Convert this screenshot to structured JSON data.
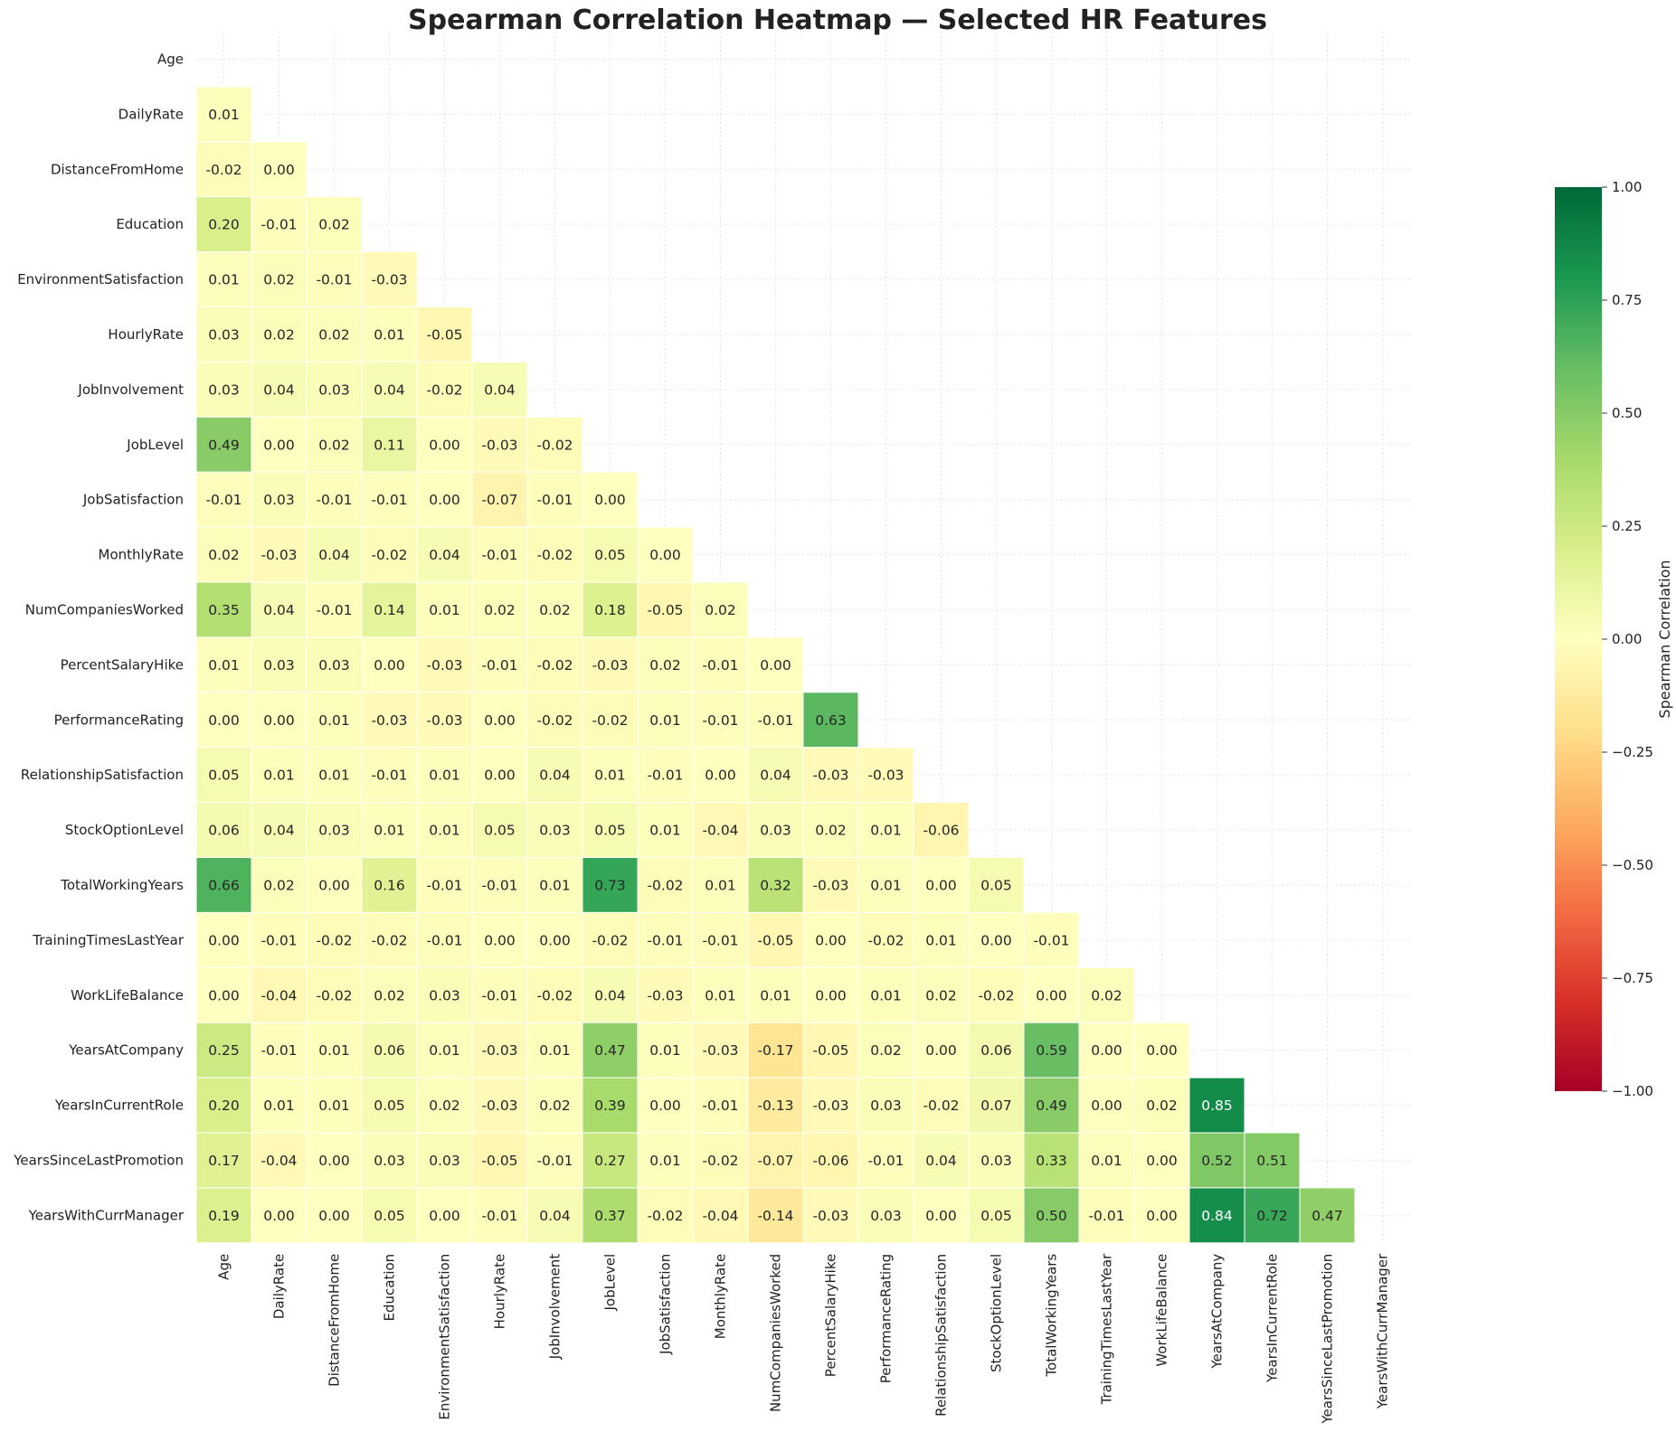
{
  "chart_data": {
    "type": "heatmap",
    "title": "Spearman Correlation Heatmap — Selected HR Features",
    "features": [
      "Age",
      "DailyRate",
      "DistanceFromHome",
      "Education",
      "EnvironmentSatisfaction",
      "HourlyRate",
      "JobInvolvement",
      "JobLevel",
      "JobSatisfaction",
      "MonthlyRate",
      "NumCompaniesWorked",
      "PercentSalaryHike",
      "PerformanceRating",
      "RelationshipSatisfaction",
      "StockOptionLevel",
      "TotalWorkingYears",
      "TrainingTimesLastYear",
      "WorkLifeBalance",
      "YearsAtCompany",
      "YearsInCurrentRole",
      "YearsSinceLastPromotion",
      "YearsWithCurrManager"
    ],
    "mask": "upper-triangle-including-diagonal",
    "lower_triangle_values": [
      [],
      [
        0.01
      ],
      [
        -0.02,
        -0.0
      ],
      [
        0.2,
        -0.01,
        0.02
      ],
      [
        0.01,
        0.02,
        -0.01,
        -0.03
      ],
      [
        0.03,
        0.02,
        0.02,
        0.01,
        -0.05
      ],
      [
        0.03,
        0.04,
        0.03,
        0.04,
        -0.02,
        0.04
      ],
      [
        0.49,
        0.0,
        0.02,
        0.11,
        -0.0,
        -0.03,
        -0.02
      ],
      [
        -0.01,
        0.03,
        -0.01,
        -0.01,
        -0.0,
        -0.07,
        -0.01,
        -0.0
      ],
      [
        0.02,
        -0.03,
        0.04,
        -0.02,
        0.04,
        -0.01,
        -0.02,
        0.05,
        -0.0
      ],
      [
        0.35,
        0.04,
        -0.01,
        0.14,
        0.01,
        0.02,
        0.02,
        0.18,
        -0.05,
        0.02
      ],
      [
        0.01,
        0.03,
        0.03,
        0.0,
        -0.03,
        -0.01,
        -0.02,
        -0.03,
        0.02,
        -0.01,
        0.0
      ],
      [
        0.0,
        0.0,
        0.01,
        -0.03,
        -0.03,
        -0.0,
        -0.02,
        -0.02,
        0.01,
        -0.01,
        -0.01,
        0.63
      ],
      [
        0.05,
        0.01,
        0.01,
        -0.01,
        0.01,
        0.0,
        0.04,
        0.01,
        -0.01,
        -0.0,
        0.04,
        -0.03,
        -0.03
      ],
      [
        0.06,
        0.04,
        0.03,
        0.01,
        0.01,
        0.05,
        0.03,
        0.05,
        0.01,
        -0.04,
        0.03,
        0.02,
        0.01,
        -0.06
      ],
      [
        0.66,
        0.02,
        -0.0,
        0.16,
        -0.01,
        -0.01,
        0.01,
        0.73,
        -0.02,
        0.01,
        0.32,
        -0.03,
        0.01,
        0.0,
        0.05
      ],
      [
        0.0,
        -0.01,
        -0.02,
        -0.02,
        -0.01,
        0.0,
        0.0,
        -0.02,
        -0.01,
        -0.01,
        -0.05,
        -0.0,
        -0.02,
        0.01,
        0.0,
        -0.01
      ],
      [
        -0.0,
        -0.04,
        -0.02,
        0.02,
        0.03,
        -0.01,
        -0.02,
        0.04,
        -0.03,
        0.01,
        0.01,
        0.0,
        0.01,
        0.02,
        -0.02,
        0.0,
        0.02
      ],
      [
        0.25,
        -0.01,
        0.01,
        0.06,
        0.01,
        -0.03,
        0.01,
        0.47,
        0.01,
        -0.03,
        -0.17,
        -0.05,
        0.02,
        -0.0,
        0.06,
        0.59,
        0.0,
        0.0
      ],
      [
        0.2,
        0.01,
        0.01,
        0.05,
        0.02,
        -0.03,
        0.02,
        0.39,
        0.0,
        -0.01,
        -0.13,
        -0.03,
        0.03,
        -0.02,
        0.07,
        0.49,
        0.0,
        0.02,
        0.85
      ],
      [
        0.17,
        -0.04,
        -0.0,
        0.03,
        0.03,
        -0.05,
        -0.01,
        0.27,
        0.01,
        -0.02,
        -0.07,
        -0.06,
        -0.01,
        0.04,
        0.03,
        0.33,
        0.01,
        0.0,
        0.52,
        0.51
      ],
      [
        0.19,
        -0.0,
        0.0,
        0.05,
        -0.0,
        -0.01,
        0.04,
        0.37,
        -0.02,
        -0.04,
        -0.14,
        -0.03,
        0.03,
        0.0,
        0.05,
        0.5,
        -0.01,
        -0.0,
        0.84,
        0.72,
        0.47
      ]
    ],
    "value_format": "two decimals",
    "colorbar": {
      "label": "Spearman Correlation",
      "range": [
        -1.0,
        1.0
      ],
      "ticks": [
        "−1.00",
        "−0.75",
        "−0.50",
        "−0.25",
        "0.00",
        "0.25",
        "0.50",
        "0.75",
        "1.00"
      ],
      "colormap": "RdYlGn"
    },
    "grid": true,
    "legend": "colorbar-right"
  }
}
